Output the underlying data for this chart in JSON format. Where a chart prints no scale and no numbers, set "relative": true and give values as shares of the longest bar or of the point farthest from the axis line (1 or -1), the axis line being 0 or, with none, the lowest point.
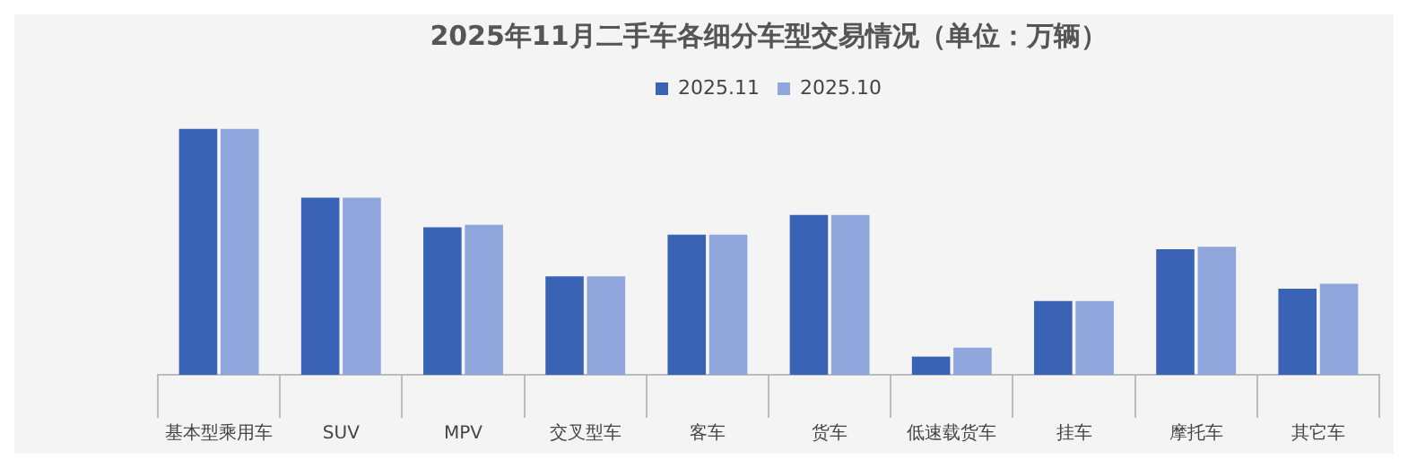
{
  "chart_data": {
    "type": "bar",
    "title": "2025年11月二手车各细分车型交易情况（单位：万辆）",
    "relative": true,
    "legend": "top",
    "categories": [
      "基本型乘用车",
      "SUV",
      "MPV",
      "交叉型车",
      "客车",
      "货车",
      "低速载货车",
      "挂车",
      "摩托车",
      "其它车"
    ],
    "series": [
      {
        "name": "2025.11",
        "color": "#3a62b5",
        "values": [
          1,
          0.72,
          0.6,
          0.4,
          0.57,
          0.65,
          0.074,
          0.3,
          0.51,
          0.35
        ]
      },
      {
        "name": "2025.10",
        "color": "#8fa6dc",
        "values": [
          1,
          0.72,
          0.61,
          0.4,
          0.57,
          0.65,
          0.11,
          0.3,
          0.52,
          0.37
        ]
      }
    ]
  }
}
